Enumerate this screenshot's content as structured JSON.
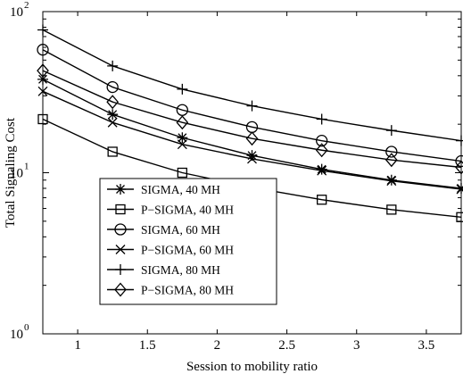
{
  "chart_data": {
    "type": "line",
    "xlabel": "Session to mobility ratio",
    "ylabel": "Total Signaling Cost",
    "xlim": [
      0.75,
      3.75
    ],
    "ylim": [
      1,
      100
    ],
    "yscale": "log",
    "grid": false,
    "legend_position": "bottom-left",
    "x": [
      0.75,
      1.25,
      1.75,
      2.25,
      2.75,
      3.25,
      3.75
    ],
    "xticks": [
      1,
      1.5,
      2,
      2.5,
      3,
      3.5
    ],
    "xtick_labels": [
      "1",
      "1.5",
      "2",
      "2.5",
      "3",
      "3.5"
    ],
    "yticks": [
      1,
      10,
      100
    ],
    "ytick_labels": [
      "10",
      "10",
      "10"
    ],
    "ytick_exponents": [
      "0",
      "1",
      "2"
    ],
    "series": [
      {
        "name": "SIGMA, 40 MH",
        "marker": "asterisk",
        "values": [
          38,
          23,
          16.5,
          12.8,
          10.5,
          9.0,
          8.0
        ]
      },
      {
        "name": "P−SIGMA, 40 MH",
        "marker": "square",
        "values": [
          21.5,
          13.5,
          10.0,
          8.1,
          6.8,
          5.9,
          5.3
        ]
      },
      {
        "name": "SIGMA, 60 MH",
        "marker": "circle",
        "values": [
          58,
          34,
          24.5,
          19.2,
          15.8,
          13.5,
          11.8
        ]
      },
      {
        "name": "P−SIGMA, 60 MH",
        "marker": "x",
        "values": [
          32,
          20.5,
          15.0,
          12.2,
          10.3,
          8.9,
          7.9
        ]
      },
      {
        "name": "SIGMA, 80 MH",
        "marker": "plus",
        "values": [
          77,
          46,
          33,
          26,
          21.5,
          18.3,
          15.8
        ]
      },
      {
        "name": "P−SIGMA, 80 MH",
        "marker": "diamond",
        "values": [
          43,
          27.5,
          20.5,
          16.3,
          13.8,
          12.0,
          10.8
        ]
      }
    ]
  }
}
